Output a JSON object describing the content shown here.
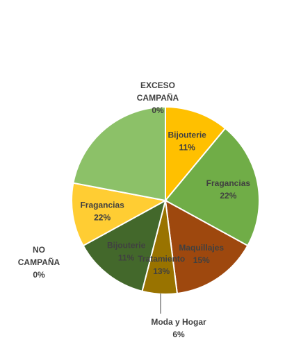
{
  "chart_data": {
    "type": "pie",
    "start_angle_deg": 0,
    "direction": "clockwise",
    "slices": [
      {
        "label": "Bijouterie",
        "value": 11,
        "display": "11%",
        "color": "#ffc000",
        "label_color": "#404040"
      },
      {
        "label": "Fragancias",
        "value": 22,
        "display": "22%",
        "color": "#70ad47",
        "label_color": "#404040"
      },
      {
        "label": "Maquillajes",
        "value": 15,
        "display": "15%",
        "color": "#9e480e",
        "label_color": "#404040"
      },
      {
        "label": "Moda y Hogar",
        "value": 6,
        "display": "6%",
        "color": "#997300",
        "label_color": "#404040"
      },
      {
        "label": "Tratamiento",
        "value": 13,
        "display": "13%",
        "color": "#43682b",
        "label_color": "#404040"
      },
      {
        "label": "NO CAMPAÑA",
        "value": 0,
        "display": "0%",
        "color": "#ffffff",
        "label_color": "#404040"
      },
      {
        "label": "Bijouterie",
        "value": 11,
        "display": "11%",
        "color": "#ffcd33",
        "label_color": "#404040"
      },
      {
        "label": "Fragancias",
        "value": 22,
        "display": "22%",
        "color": "#8cc168",
        "label_color": "#404040"
      },
      {
        "label": "EXCESO CAMPAÑA",
        "value": 0,
        "display": "0%",
        "color": "#ffffff",
        "label_color": "#404040"
      }
    ],
    "outer_labels": {
      "exceso": [
        "EXCESO",
        "CAMPAÑA",
        "0%"
      ],
      "no_campana": [
        "NO",
        "CAMPAÑA",
        "0%"
      ],
      "moda": [
        "Moda y Hogar",
        "6%"
      ]
    },
    "inner_labels": [
      {
        "lines": [
          "Bijouterie",
          "11%"
        ]
      },
      {
        "lines": [
          "Fragancias",
          "22%"
        ]
      },
      {
        "lines": [
          "Maquillajes",
          "15%"
        ]
      },
      {
        "lines": [
          "Tratamiento",
          "13%"
        ]
      },
      {
        "lines": [
          "Bijouterie",
          "11%"
        ]
      },
      {
        "lines": [
          "Fragancias",
          "22%"
        ]
      }
    ]
  }
}
